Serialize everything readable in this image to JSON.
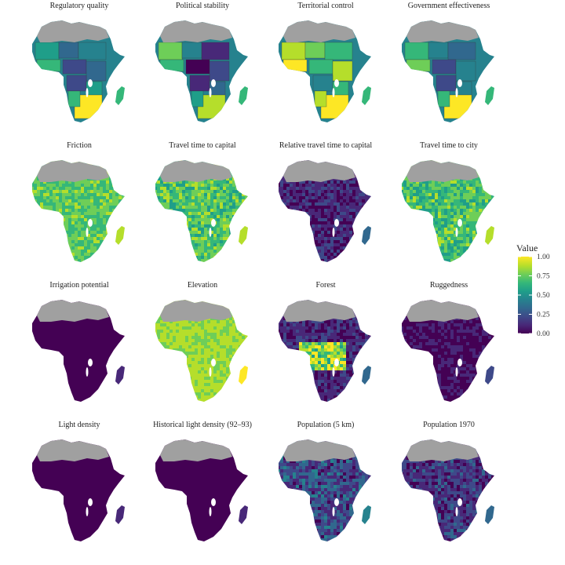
{
  "colors": {
    "viridis": [
      "#440154",
      "#482878",
      "#3e4989",
      "#31688e",
      "#26828e",
      "#1f9e89",
      "#35b779",
      "#6ece58",
      "#b5de2b",
      "#fde725"
    ],
    "no_data": "#a0a0a0",
    "background": "#ffffff"
  },
  "legend": {
    "title": "Value",
    "ticks": [
      "1.00",
      "0.75",
      "0.50",
      "0.25",
      "0.00"
    ]
  },
  "panels": [
    {
      "title": "Regulatory quality",
      "mode": "regions",
      "palette_bias": [
        1,
        2,
        3,
        4,
        5,
        6,
        7,
        8
      ]
    },
    {
      "title": "Political stability",
      "mode": "regions",
      "palette_bias": [
        0,
        1,
        2,
        3,
        5,
        6,
        7,
        8
      ]
    },
    {
      "title": "Territorial control",
      "mode": "regions",
      "palette_bias": [
        2,
        4,
        5,
        6,
        7,
        8,
        9,
        9
      ]
    },
    {
      "title": "Government effectiveness",
      "mode": "regions",
      "palette_bias": [
        1,
        2,
        3,
        4,
        5,
        6,
        7,
        8
      ]
    },
    {
      "title": "Friction",
      "mode": "smooth",
      "level": 0.72,
      "noise": 0.12
    },
    {
      "title": "Travel time to capital",
      "mode": "smooth",
      "level": 0.7,
      "noise": 0.15
    },
    {
      "title": "Relative travel time to capital",
      "mode": "smooth",
      "level": 0.15,
      "noise": 0.12
    },
    {
      "title": "Travel time to city",
      "mode": "smooth",
      "level": 0.68,
      "noise": 0.15
    },
    {
      "title": "Irrigation potential",
      "mode": "smooth",
      "level": 0.03,
      "noise": 0.03
    },
    {
      "title": "Elevation",
      "mode": "smooth",
      "level": 0.82,
      "noise": 0.08
    },
    {
      "title": "Forest",
      "mode": "forest",
      "level": 0.15,
      "noise": 0.1
    },
    {
      "title": "Ruggedness",
      "mode": "smooth",
      "level": 0.08,
      "noise": 0.08
    },
    {
      "title": "Light density",
      "mode": "smooth",
      "level": 0.03,
      "noise": 0.03
    },
    {
      "title": "Historical light density (92–93)",
      "mode": "smooth",
      "level": 0.02,
      "noise": 0.02
    },
    {
      "title": "Population (5 km)",
      "mode": "smooth",
      "level": 0.25,
      "noise": 0.18
    },
    {
      "title": "Population 1970",
      "mode": "smooth",
      "level": 0.18,
      "noise": 0.15
    }
  ]
}
